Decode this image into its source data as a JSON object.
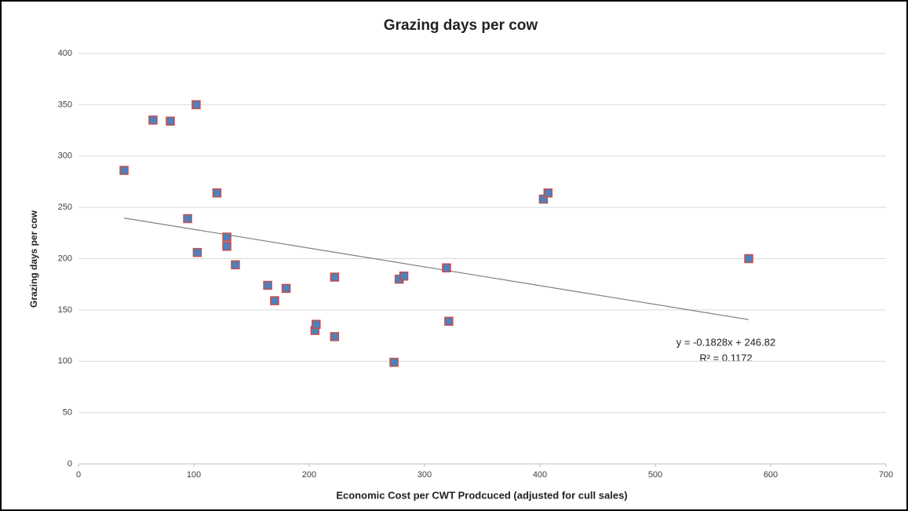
{
  "chart_data": {
    "type": "scatter",
    "title": "Grazing days per cow",
    "xlabel": "Economic Cost per CWT Prodcuced (adjusted for cull sales)",
    "ylabel": "Grazing days per cow",
    "series": [
      {
        "name": "Grazing days per cow",
        "color": "#4f81bd",
        "edge_color": "#c0504d",
        "x": [
          39.5,
          64.6,
          79.6,
          102,
          94.6,
          120,
          103,
          128.6,
          128.6,
          136,
          164,
          170,
          180,
          222,
          205,
          206,
          222,
          273.5,
          278,
          282,
          319,
          321,
          403,
          407,
          581
        ],
        "values": [
          286,
          335,
          334,
          350,
          239,
          264,
          206,
          221,
          212,
          194,
          174,
          159,
          171,
          182,
          130,
          136,
          124,
          99,
          180,
          183,
          191,
          139,
          258,
          264,
          200
        ]
      }
    ],
    "trendline": {
      "x": [
        39.5,
        581
      ],
      "y": [
        239.6,
        140.6
      ],
      "color": "#808080"
    },
    "annotations": [
      "y = -0.1828x + 246.82",
      "R² = 0.1172"
    ],
    "xlim": [
      0,
      700
    ],
    "xticks": [
      0,
      100,
      200,
      300,
      400,
      500,
      600,
      700
    ],
    "ylim": [
      0,
      400
    ],
    "yticks": [
      0,
      50,
      100,
      150,
      200,
      250,
      300,
      350,
      400
    ],
    "grid": true
  }
}
